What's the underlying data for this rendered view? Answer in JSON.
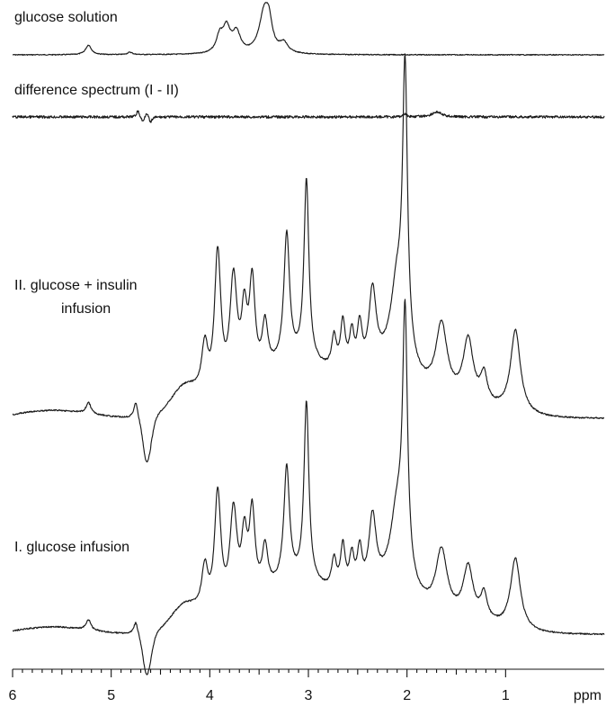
{
  "chart_data": {
    "type": "line",
    "x_unit": "ppm",
    "xlim": [
      6,
      0
    ],
    "x_ticks": [
      "6",
      "5",
      "4",
      "3",
      "2",
      "1"
    ],
    "x_tick_values": [
      6,
      5,
      4,
      3,
      2,
      1
    ],
    "series": [
      {
        "name": "glucose solution",
        "peaks": [
          {
            "ppm": 5.23,
            "height": 0.12,
            "width": 0.035
          },
          {
            "ppm": 4.81,
            "height": 0.03,
            "width": 0.03
          },
          {
            "ppm": 3.9,
            "height": 0.2,
            "width": 0.04
          },
          {
            "ppm": 3.83,
            "height": 0.3,
            "width": 0.045
          },
          {
            "ppm": 3.73,
            "height": 0.25,
            "width": 0.05
          },
          {
            "ppm": 3.45,
            "height": 0.48,
            "width": 0.06
          },
          {
            "ppm": 3.4,
            "height": 0.3,
            "width": 0.04
          },
          {
            "ppm": 3.25,
            "height": 0.12,
            "width": 0.05
          }
        ]
      },
      {
        "name": "difference spectrum (I - II)",
        "peaks": [
          {
            "ppm": 4.73,
            "height": 0.12,
            "width": 0.015
          },
          {
            "ppm": 4.68,
            "height": -0.1,
            "width": 0.015
          },
          {
            "ppm": 4.64,
            "height": 0.1,
            "width": 0.015
          },
          {
            "ppm": 4.6,
            "height": -0.12,
            "width": 0.015
          },
          {
            "ppm": 2.02,
            "height": 0.06,
            "width": 0.02
          },
          {
            "ppm": 1.7,
            "height": 0.09,
            "width": 0.06
          }
        ]
      },
      {
        "name": "II. glucose + insulin infusion",
        "peaks": [
          {
            "ppm": 5.23,
            "height": 0.04,
            "width": 0.03
          },
          {
            "ppm": 4.75,
            "height": 0.06,
            "width": 0.025
          },
          {
            "ppm": 4.65,
            "height": -0.05,
            "width": 0.04
          },
          {
            "ppm": 4.05,
            "height": 0.18,
            "width": 0.04
          },
          {
            "ppm": 3.92,
            "height": 0.52,
            "width": 0.04
          },
          {
            "ppm": 3.76,
            "height": 0.4,
            "width": 0.045
          },
          {
            "ppm": 3.65,
            "height": 0.24,
            "width": 0.035
          },
          {
            "ppm": 3.57,
            "height": 0.34,
            "width": 0.035
          },
          {
            "ppm": 3.44,
            "height": 0.17,
            "width": 0.035
          },
          {
            "ppm": 3.22,
            "height": 0.46,
            "width": 0.035
          },
          {
            "ppm": 3.02,
            "height": 0.65,
            "width": 0.03
          },
          {
            "ppm": 2.74,
            "height": 0.12,
            "width": 0.03
          },
          {
            "ppm": 2.65,
            "height": 0.18,
            "width": 0.03
          },
          {
            "ppm": 2.56,
            "height": 0.14,
            "width": 0.03
          },
          {
            "ppm": 2.48,
            "height": 0.16,
            "width": 0.03
          },
          {
            "ppm": 2.35,
            "height": 0.28,
            "width": 0.045
          },
          {
            "ppm": 2.1,
            "height": 0.28,
            "width": 0.08
          },
          {
            "ppm": 2.02,
            "height": 1.0,
            "width": 0.03
          },
          {
            "ppm": 1.65,
            "height": 0.26,
            "width": 0.07
          },
          {
            "ppm": 1.38,
            "height": 0.22,
            "width": 0.06
          },
          {
            "ppm": 1.22,
            "height": 0.1,
            "width": 0.04
          },
          {
            "ppm": 0.9,
            "height": 0.3,
            "width": 0.06
          }
        ]
      },
      {
        "name": "I. glucose infusion",
        "peaks": [
          {
            "ppm": 5.23,
            "height": 0.04,
            "width": 0.03
          },
          {
            "ppm": 4.75,
            "height": 0.05,
            "width": 0.025
          },
          {
            "ppm": 4.65,
            "height": -0.05,
            "width": 0.04
          },
          {
            "ppm": 4.05,
            "height": 0.18,
            "width": 0.04
          },
          {
            "ppm": 3.92,
            "height": 0.48,
            "width": 0.04
          },
          {
            "ppm": 3.76,
            "height": 0.38,
            "width": 0.045
          },
          {
            "ppm": 3.65,
            "height": 0.24,
            "width": 0.035
          },
          {
            "ppm": 3.57,
            "height": 0.33,
            "width": 0.035
          },
          {
            "ppm": 3.44,
            "height": 0.17,
            "width": 0.035
          },
          {
            "ppm": 3.22,
            "height": 0.45,
            "width": 0.035
          },
          {
            "ppm": 3.02,
            "height": 0.7,
            "width": 0.03
          },
          {
            "ppm": 2.74,
            "height": 0.12,
            "width": 0.03
          },
          {
            "ppm": 2.65,
            "height": 0.18,
            "width": 0.03
          },
          {
            "ppm": 2.56,
            "height": 0.14,
            "width": 0.03
          },
          {
            "ppm": 2.48,
            "height": 0.16,
            "width": 0.03
          },
          {
            "ppm": 2.35,
            "height": 0.28,
            "width": 0.045
          },
          {
            "ppm": 2.1,
            "height": 0.28,
            "width": 0.08
          },
          {
            "ppm": 2.02,
            "height": 1.0,
            "width": 0.03
          },
          {
            "ppm": 1.65,
            "height": 0.25,
            "width": 0.07
          },
          {
            "ppm": 1.38,
            "height": 0.2,
            "width": 0.06
          },
          {
            "ppm": 1.22,
            "height": 0.1,
            "width": 0.04
          },
          {
            "ppm": 0.9,
            "height": 0.28,
            "width": 0.06
          }
        ]
      }
    ]
  }
}
